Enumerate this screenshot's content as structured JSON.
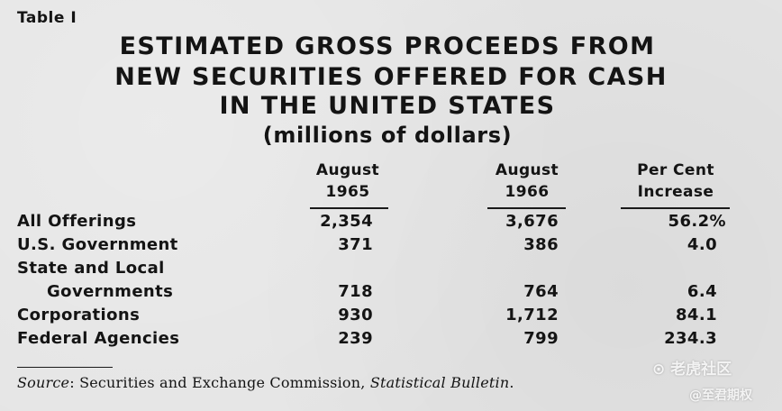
{
  "table_label": "Table I",
  "title": {
    "line1": "ESTIMATED GROSS PROCEEDS FROM",
    "line2": "NEW SECURITIES OFFERED FOR CASH",
    "line3": "IN THE UNITED STATES",
    "units": "(millions of dollars)"
  },
  "columns": [
    {
      "line1": "August",
      "line2": "1965"
    },
    {
      "line1": "August",
      "line2": "1966"
    },
    {
      "line1": "Per Cent",
      "line2": "Increase"
    }
  ],
  "rows": [
    {
      "label": "All Offerings",
      "values": [
        "2,354",
        "3,676",
        "56.2%"
      ]
    },
    {
      "label": "U.S. Government",
      "values": [
        "371",
        "386",
        "4.0"
      ]
    },
    {
      "label": "State and Local",
      "values": [
        "",
        "",
        ""
      ]
    },
    {
      "label": "Governments",
      "values": [
        "718",
        "764",
        "6.4"
      ]
    },
    {
      "label": "Corporations",
      "values": [
        "930",
        "1,712",
        "84.1"
      ]
    },
    {
      "label": "Federal Agencies",
      "values": [
        "239",
        "799",
        "234.3"
      ]
    }
  ],
  "source": {
    "prefix": "Source",
    "text": ": Securities and Exchange Commission, ",
    "publication": "Statistical Bulletin",
    "suffix": "."
  },
  "watermark": {
    "line1": "⊙ 老虎社区",
    "line2": "@至君期权"
  }
}
